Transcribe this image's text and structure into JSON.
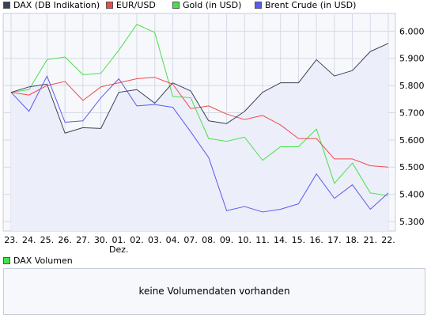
{
  "legend": [
    {
      "label": "DAX (DB Indikation)",
      "color": "#3a4154"
    },
    {
      "label": "EUR/USD",
      "color": "#f04a4a"
    },
    {
      "label": "Gold (in USD)",
      "color": "#4ae04a"
    },
    {
      "label": "Brent Crude (in USD)",
      "color": "#5a5af0"
    }
  ],
  "volume": {
    "legend_label": "DAX Volumen",
    "legend_color": "#4ae04a",
    "message": "keine Volumendaten vorhanden"
  },
  "chart_data": {
    "type": "line",
    "categories": [
      "23.",
      "24.",
      "25.",
      "26.",
      "27.",
      "30.",
      "01.",
      "02.",
      "03.",
      "04.",
      "07.",
      "08.",
      "09.",
      "10.",
      "11.",
      "14.",
      "15.",
      "16.",
      "17.",
      "18.",
      "21.",
      "22."
    ],
    "month_label": {
      "text": "Dez.",
      "category_index": 6
    },
    "yticks": [
      5.3,
      5.4,
      5.5,
      5.6,
      5.7,
      5.8,
      5.9,
      6.0
    ],
    "ytick_labels": [
      "5.300",
      "5.400",
      "5.500",
      "5.600",
      "5.700",
      "5.800",
      "5.900",
      "6.000"
    ],
    "ylim": [
      5.265,
      6.065
    ],
    "grid": true,
    "legend_position": "top",
    "series": [
      {
        "name": "DAX (DB Indikation)",
        "color": "#3a4154",
        "area_fill": "#eceef9",
        "values": [
          5.775,
          5.795,
          5.805,
          5.625,
          5.645,
          5.642,
          5.775,
          5.785,
          5.735,
          5.81,
          5.78,
          5.67,
          5.66,
          5.705,
          5.775,
          5.81,
          5.81,
          5.895,
          5.835,
          5.855,
          5.925,
          5.955
        ]
      },
      {
        "name": "EUR/USD",
        "color": "#f04a4a",
        "values": [
          5.775,
          5.765,
          5.8,
          5.815,
          5.745,
          5.795,
          5.81,
          5.825,
          5.83,
          5.805,
          5.715,
          5.725,
          5.695,
          5.675,
          5.69,
          5.655,
          5.605,
          5.605,
          5.53,
          5.53,
          5.505,
          5.5
        ]
      },
      {
        "name": "Gold (in USD)",
        "color": "#4ae04a",
        "values": [
          5.775,
          5.785,
          5.895,
          5.905,
          5.84,
          5.845,
          5.93,
          6.025,
          5.995,
          5.76,
          5.755,
          5.605,
          5.595,
          5.61,
          5.525,
          5.575,
          5.575,
          5.64,
          5.44,
          5.515,
          5.405,
          5.395
        ]
      },
      {
        "name": "Brent Crude (in USD)",
        "color": "#5a5af0",
        "values": [
          5.775,
          5.705,
          5.835,
          5.665,
          5.67,
          5.755,
          5.825,
          5.725,
          5.73,
          5.72,
          5.63,
          5.535,
          5.34,
          5.355,
          5.335,
          5.345,
          5.365,
          5.475,
          5.385,
          5.435,
          5.345,
          5.405
        ]
      }
    ]
  }
}
